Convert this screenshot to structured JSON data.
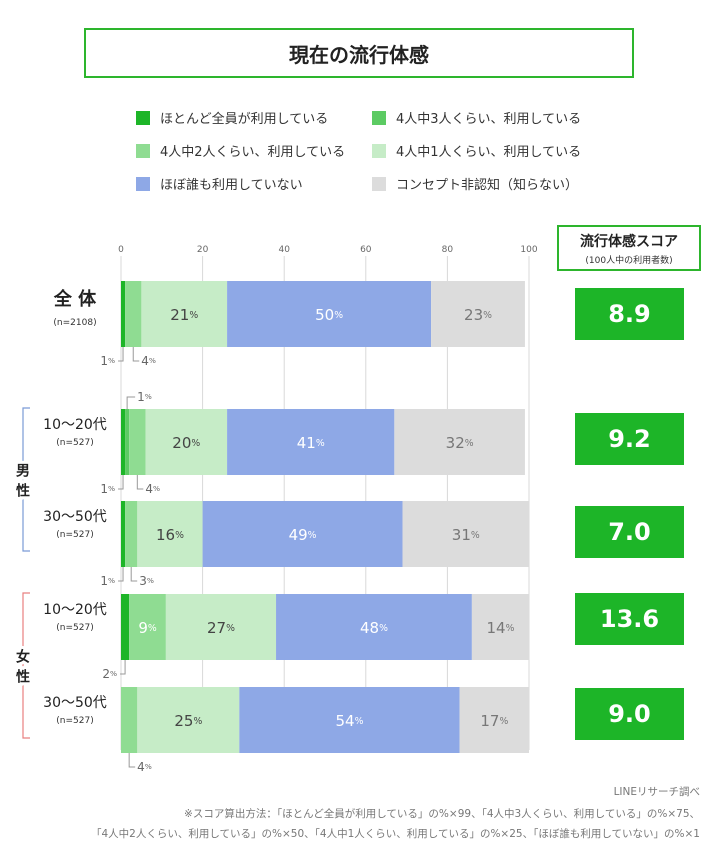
{
  "title": "現在の流行体感",
  "colors": {
    "all_use": "#1db528",
    "three_of_four": "#5ccb63",
    "two_of_four": "#8fdc92",
    "one_of_four": "#c6ecc7",
    "few_use": "#8ea8e6",
    "unaware": "#dcdcdc",
    "accent": "#2db52d"
  },
  "legend": [
    {
      "label": "ほとんど全員が利用している",
      "color": "#1db528"
    },
    {
      "label": "4人中3人くらい、利用している",
      "color": "#5ccb63"
    },
    {
      "label": "4人中2人くらい、利用している",
      "color": "#8fdc92"
    },
    {
      "label": "4人中1人くらい、利用している",
      "color": "#c6ecc7"
    },
    {
      "label": "ほぼ誰も利用していない",
      "color": "#8ea8e6"
    },
    {
      "label": "コンセプト非認知（知らない）",
      "color": "#dcdcdc"
    }
  ],
  "score_header": {
    "title": "流行体感スコア",
    "subtitle": "(100人中の利用者数)"
  },
  "groups": [
    {
      "label": "男\n性",
      "color": "#7a9bd6"
    },
    {
      "label": "女\n性",
      "color": "#e88080"
    }
  ],
  "chart_data": {
    "type": "bar",
    "orientation": "horizontal",
    "stacked": true,
    "xlim": [
      0,
      100
    ],
    "xticks": [
      0,
      20,
      40,
      60,
      80,
      100
    ],
    "percent_suffix": "%",
    "categories": [
      {
        "label": "全 体",
        "n": "(n=2108)"
      },
      {
        "label": "10～20代",
        "n": "(n=527)"
      },
      {
        "label": "30～50代",
        "n": "(n=527)"
      },
      {
        "label": "10～20代",
        "n": "(n=527)"
      },
      {
        "label": "30～50代",
        "n": "(n=527)"
      }
    ],
    "series": [
      {
        "name": "ほとんど全員が利用している",
        "values": [
          1,
          1,
          1,
          2,
          0
        ]
      },
      {
        "name": "4人中3人くらい、利用している",
        "values": [
          0,
          1,
          0,
          0,
          0
        ]
      },
      {
        "name": "4人中2人くらい、利用している",
        "values": [
          4,
          4,
          3,
          9,
          4
        ]
      },
      {
        "name": "4人中1人くらい、利用している",
        "values": [
          21,
          20,
          16,
          27,
          25
        ]
      },
      {
        "name": "ほぼ誰も利用していない",
        "values": [
          50,
          41,
          49,
          48,
          54
        ]
      },
      {
        "name": "コンセプト非認知（知らない）",
        "values": [
          23,
          32,
          31,
          14,
          17
        ]
      }
    ],
    "scores": [
      "8.9",
      "9.2",
      "7.0",
      "13.6",
      "9.0"
    ]
  },
  "footnotes": [
    "LINEリサーチ調べ",
    "※スコア算出方法：「ほとんど全員が利用している」の%×99、「4人中3人くらい、利用している」の%×75、",
    "「4人中2人くらい、利用している」の%×50、「4人中1人くらい、利用している」の%×25、「ほぼ誰も利用していない」の%×1"
  ]
}
